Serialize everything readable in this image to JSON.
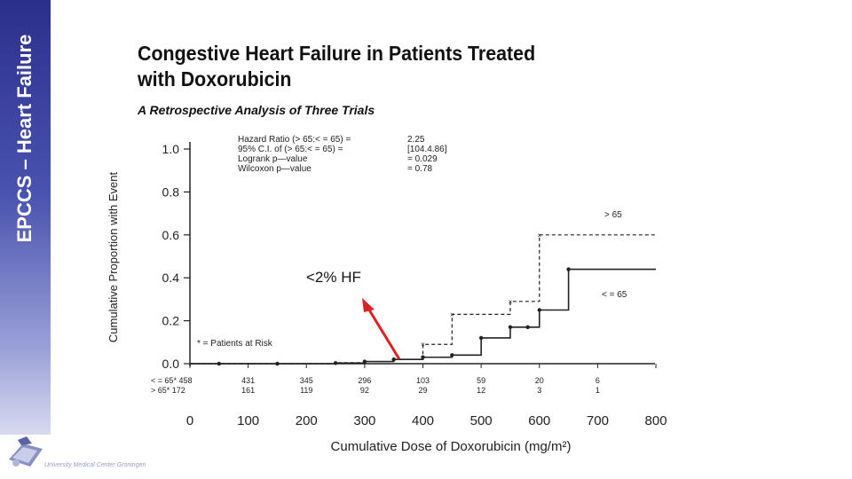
{
  "sidebar": {
    "title": "EPCCS – Heart Failure"
  },
  "logo": {
    "caption": "University Medical Center Groningen"
  },
  "slide": {
    "title_line1": "Congestive Heart Failure in Patients Treated",
    "title_line2": "with Doxorubicin",
    "subtitle": "A Retrospective Analysis of Three Trials"
  },
  "stats": {
    "labels": [
      "Hazard Ratio (> 65:< = 65) =",
      "95% C.I. of (> 65:< = 65) =",
      "Logrank p—value",
      "Wilcoxon p—value"
    ],
    "values": [
      "2.25",
      "[104.4.86]",
      "= 0.029",
      "= 0.78"
    ]
  },
  "annotation": {
    "text": "<2% HF",
    "color": "#e02020"
  },
  "at_risk": {
    "legend": "* = Patients at Risk",
    "rows": [
      {
        "label": "< = 65* 458",
        "values": [
          "431",
          "345",
          "296",
          "103",
          "59",
          "20",
          "6"
        ]
      },
      {
        "label": "> 65* 172",
        "values": [
          "161",
          "119",
          "92",
          "29",
          "12",
          "3",
          "1"
        ]
      }
    ]
  },
  "chart_data": {
    "type": "line",
    "xlabel": "Cumulative Dose of Doxorubicin (mg/m²)",
    "ylabel": "Cumulative Proportion with Event",
    "xlim": [
      0,
      800
    ],
    "ylim": [
      0,
      1.0
    ],
    "x_ticks": [
      "0",
      "100",
      "200",
      "300",
      "400",
      "500",
      "600",
      "700",
      "800"
    ],
    "y_ticks": [
      "0.0",
      "0.2",
      "0.4",
      "0.6",
      "0.8",
      "1.0"
    ],
    "series": [
      {
        "name": "> 65",
        "style": "dashed",
        "x": [
          0,
          50,
          150,
          250,
          300,
          350,
          400,
          450,
          550,
          600,
          800
        ],
        "y": [
          0,
          0,
          0,
          0.005,
          0.01,
          0.02,
          0.09,
          0.23,
          0.29,
          0.6,
          0.6
        ]
      },
      {
        "name": "< = 65",
        "style": "solid",
        "x": [
          0,
          50,
          150,
          250,
          300,
          350,
          400,
          450,
          500,
          550,
          580,
          600,
          650,
          800
        ],
        "y": [
          0,
          0,
          0,
          0.003,
          0.01,
          0.02,
          0.03,
          0.04,
          0.12,
          0.17,
          0.17,
          0.25,
          0.44,
          0.44
        ]
      }
    ]
  }
}
